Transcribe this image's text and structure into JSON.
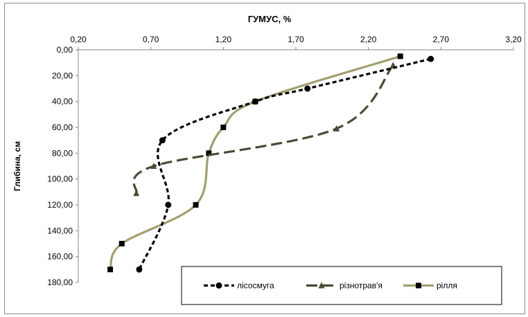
{
  "chart_data": {
    "type": "line",
    "title": "ГУМУС, %",
    "xlabel": "ГУМУС, %",
    "ylabel": "Глибина, см",
    "x_axis_position": "top",
    "y_axis_inverted": true,
    "xlim": [
      0.2,
      3.2
    ],
    "ylim": [
      0,
      180
    ],
    "x_ticks": [
      "0,20",
      "0,70",
      "1,20",
      "1,70",
      "2,20",
      "2,70",
      "3,20"
    ],
    "x_tick_values": [
      0.2,
      0.7,
      1.2,
      1.7,
      2.2,
      2.7,
      3.2
    ],
    "y_ticks": [
      "0,00",
      "20,00",
      "40,00",
      "60,00",
      "80,00",
      "100,00",
      "120,00",
      "140,00",
      "160,00",
      "180,00"
    ],
    "y_tick_values": [
      0,
      20,
      40,
      60,
      80,
      100,
      120,
      140,
      160,
      180
    ],
    "grid": false,
    "legend_position": "bottom-right",
    "series": [
      {
        "name": "лісосмуга",
        "color": "#000000",
        "dash": "short-dash",
        "marker": "circle",
        "points": [
          [
            2.63,
            7
          ],
          [
            1.78,
            30
          ],
          [
            1.42,
            40
          ],
          [
            0.78,
            70
          ],
          [
            0.82,
            120
          ],
          [
            0.62,
            170
          ]
        ]
      },
      {
        "name": "різнотрав'я",
        "color": "#4a4a36",
        "dash": "long-dash",
        "marker": "triangle",
        "points": [
          [
            2.37,
            12
          ],
          [
            1.98,
            61
          ],
          [
            0.72,
            90
          ],
          [
            0.6,
            111
          ]
        ]
      },
      {
        "name": "рілля",
        "color": "#a39e6f",
        "dash": "solid",
        "marker": "square",
        "points": [
          [
            2.42,
            5
          ],
          [
            1.42,
            40
          ],
          [
            1.2,
            60
          ],
          [
            1.1,
            80
          ],
          [
            1.01,
            120
          ],
          [
            0.5,
            150
          ],
          [
            0.42,
            170
          ]
        ]
      }
    ]
  }
}
